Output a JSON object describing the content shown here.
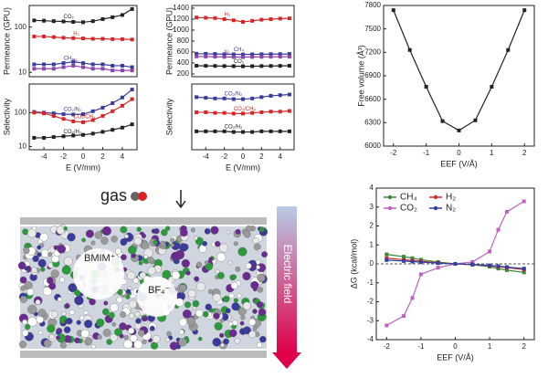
{
  "chart_data": [
    {
      "type": "line",
      "scale": "log",
      "legend": "inline",
      "ylabel": "Permeance (GPU)",
      "x": [
        -5,
        -4,
        -3,
        -2,
        -1,
        0,
        1,
        2,
        3,
        4,
        5
      ],
      "xlim": [
        -5.5,
        5.5
      ],
      "ylim": [
        8,
        300
      ],
      "yticks": [
        10,
        100
      ],
      "series": [
        {
          "name": "CO₂",
          "color": "#222222",
          "values": [
            140,
            138,
            135,
            133,
            130,
            128,
            135,
            150,
            165,
            185,
            250
          ]
        },
        {
          "name": "H₂",
          "color": "#d62728",
          "values": [
            62,
            62,
            60,
            58,
            57,
            56,
            55,
            55,
            54,
            54,
            53
          ]
        },
        {
          "name": "CH₄",
          "color": "#3b3b9c",
          "values": [
            15,
            15,
            15,
            16,
            17,
            16,
            15,
            15,
            14,
            14,
            13
          ]
        },
        {
          "name": "N₂",
          "color": "#8e44ad",
          "values": [
            12,
            12,
            12,
            13,
            14,
            13,
            12,
            12,
            11,
            11,
            11
          ]
        }
      ]
    },
    {
      "type": "line",
      "scale": "log",
      "legend": "inline",
      "ylabel": "Selectivity",
      "xlabel": "E (V/mm)",
      "x": [
        -5,
        -4,
        -3,
        -2,
        -1,
        0,
        1,
        2,
        3,
        4,
        5
      ],
      "xlim": [
        -5.5,
        5.5
      ],
      "xticks": [
        -4,
        -2,
        0,
        2,
        4
      ],
      "ylim": [
        8,
        700
      ],
      "yticks": [
        10,
        100
      ],
      "series": [
        {
          "name": "CO₂/N₂",
          "color": "#3b3b9c",
          "values": [
            105,
            100,
            95,
            90,
            88,
            90,
            110,
            140,
            190,
            280,
            480
          ]
        },
        {
          "name": "CO₂/CH₄",
          "color": "#d62728",
          "values": [
            100,
            95,
            80,
            65,
            55,
            52,
            60,
            80,
            110,
            160,
            250
          ]
        },
        {
          "name": "CO₂/H₂",
          "color": "#222222",
          "values": [
            18,
            18,
            19,
            20,
            21,
            22,
            24,
            27,
            31,
            36,
            45
          ]
        }
      ]
    },
    {
      "type": "line",
      "scale": "linear",
      "legend": "inline",
      "ylabel": "Permeance (GPU)",
      "x": [
        -5,
        -4,
        -3,
        -2,
        -1,
        0,
        1,
        2,
        3,
        4,
        5
      ],
      "xlim": [
        -5.5,
        5.5
      ],
      "ylim": [
        150,
        1450
      ],
      "yticks": [
        200,
        400,
        600,
        800,
        1000,
        1200,
        1400
      ],
      "series": [
        {
          "name": "H₂",
          "color": "#d62728",
          "values": [
            1230,
            1225,
            1220,
            1200,
            1180,
            1150,
            1170,
            1190,
            1200,
            1210,
            1215
          ]
        },
        {
          "name": "CH₄",
          "color": "#3b3b9c",
          "values": [
            570,
            568,
            565,
            560,
            558,
            556,
            558,
            560,
            562,
            563,
            565
          ]
        },
        {
          "name": "N₂",
          "color": "#8e44ad",
          "values": [
            520,
            518,
            515,
            512,
            510,
            508,
            510,
            512,
            514,
            515,
            516
          ]
        },
        {
          "name": "CO₂",
          "color": "#222222",
          "values": [
            350,
            348,
            346,
            344,
            342,
            340,
            342,
            344,
            346,
            348,
            350
          ]
        }
      ]
    },
    {
      "type": "line",
      "scale": "linear",
      "legend": "inline",
      "ylabel": "Selectivity",
      "xlabel": "E (V/mm)",
      "x": [
        -5,
        -4,
        -3,
        -2,
        -1,
        0,
        1,
        2,
        3,
        4,
        5
      ],
      "xlim": [
        -5.5,
        5.5
      ],
      "xticks": [
        -4,
        -2,
        0,
        2,
        4
      ],
      "ylim": [
        0,
        1
      ],
      "series": [
        {
          "name": "CO₂/N₂",
          "color": "#3b3b9c",
          "values": [
            0.8,
            0.79,
            0.78,
            0.78,
            0.77,
            0.77,
            0.78,
            0.8,
            0.82,
            0.83,
            0.84
          ]
        },
        {
          "name": "CO₂/CH₄",
          "color": "#d62728",
          "values": [
            0.57,
            0.57,
            0.56,
            0.56,
            0.55,
            0.55,
            0.56,
            0.57,
            0.58,
            0.58,
            0.59
          ]
        },
        {
          "name": "CO₂/H₂",
          "color": "#222222",
          "values": [
            0.28,
            0.28,
            0.28,
            0.28,
            0.27,
            0.27,
            0.27,
            0.28,
            0.28,
            0.28,
            0.28
          ]
        }
      ]
    },
    {
      "type": "line",
      "scale": "linear",
      "ylabel": "Free volume (Å³)",
      "xlabel": "EEF (V/Å)",
      "x": [
        -2,
        -1.5,
        -1,
        -0.5,
        0,
        0.5,
        1,
        1.5,
        2
      ],
      "xlim": [
        -2.3,
        2.3
      ],
      "xticks": [
        -2,
        -1,
        0,
        1,
        2
      ],
      "ylim": [
        6000,
        7800
      ],
      "yticks": [
        6000,
        6300,
        6600,
        6900,
        7200,
        7500,
        7800
      ],
      "series": [
        {
          "color": "#222222",
          "values": [
            7740,
            7230,
            6760,
            6320,
            6200,
            6330,
            6760,
            7230,
            7740
          ]
        }
      ]
    },
    {
      "type": "line",
      "scale": "linear",
      "legend": "upper left",
      "ylabel": "ΔG (kcal/mol)",
      "xlabel": "EEF (V/Å)",
      "x": [
        -2,
        -1.5,
        -1.25,
        -1,
        -0.5,
        0,
        0.5,
        1,
        1.25,
        1.5,
        2
      ],
      "xlim": [
        -2.3,
        2.3
      ],
      "xticks": [
        -2,
        -1,
        0,
        1,
        2
      ],
      "ylim": [
        -4,
        4
      ],
      "yticks": [
        -4,
        -3,
        -2,
        -1,
        0,
        1,
        2,
        3,
        4
      ],
      "zero_line": true,
      "series": [
        {
          "name": "CH₄",
          "color": "#3a8a3a",
          "values": [
            0.5,
            0.38,
            0.3,
            0.22,
            0.1,
            0,
            -0.05,
            -0.15,
            -0.25,
            -0.33,
            -0.45
          ]
        },
        {
          "name": "H₂",
          "color": "#d03030",
          "values": [
            0.3,
            0.22,
            0.18,
            0.14,
            0.06,
            0,
            -0.04,
            -0.1,
            -0.15,
            -0.2,
            -0.3
          ]
        },
        {
          "name": "CO₂",
          "color": "#c060c0",
          "values": [
            -3.25,
            -2.75,
            -1.8,
            -0.55,
            -0.2,
            0,
            0.1,
            0.65,
            1.8,
            2.75,
            3.3
          ]
        },
        {
          "name": "N₂",
          "color": "#3040a0",
          "values": [
            0.2,
            0.15,
            0.12,
            0.09,
            0.04,
            0,
            -0.03,
            -0.08,
            -0.12,
            -0.17,
            -0.25
          ]
        }
      ]
    }
  ],
  "illustration": {
    "gas": "gas",
    "cation": "BMIM⁺",
    "anion": "BF₄⁻",
    "field": "Electric field"
  }
}
